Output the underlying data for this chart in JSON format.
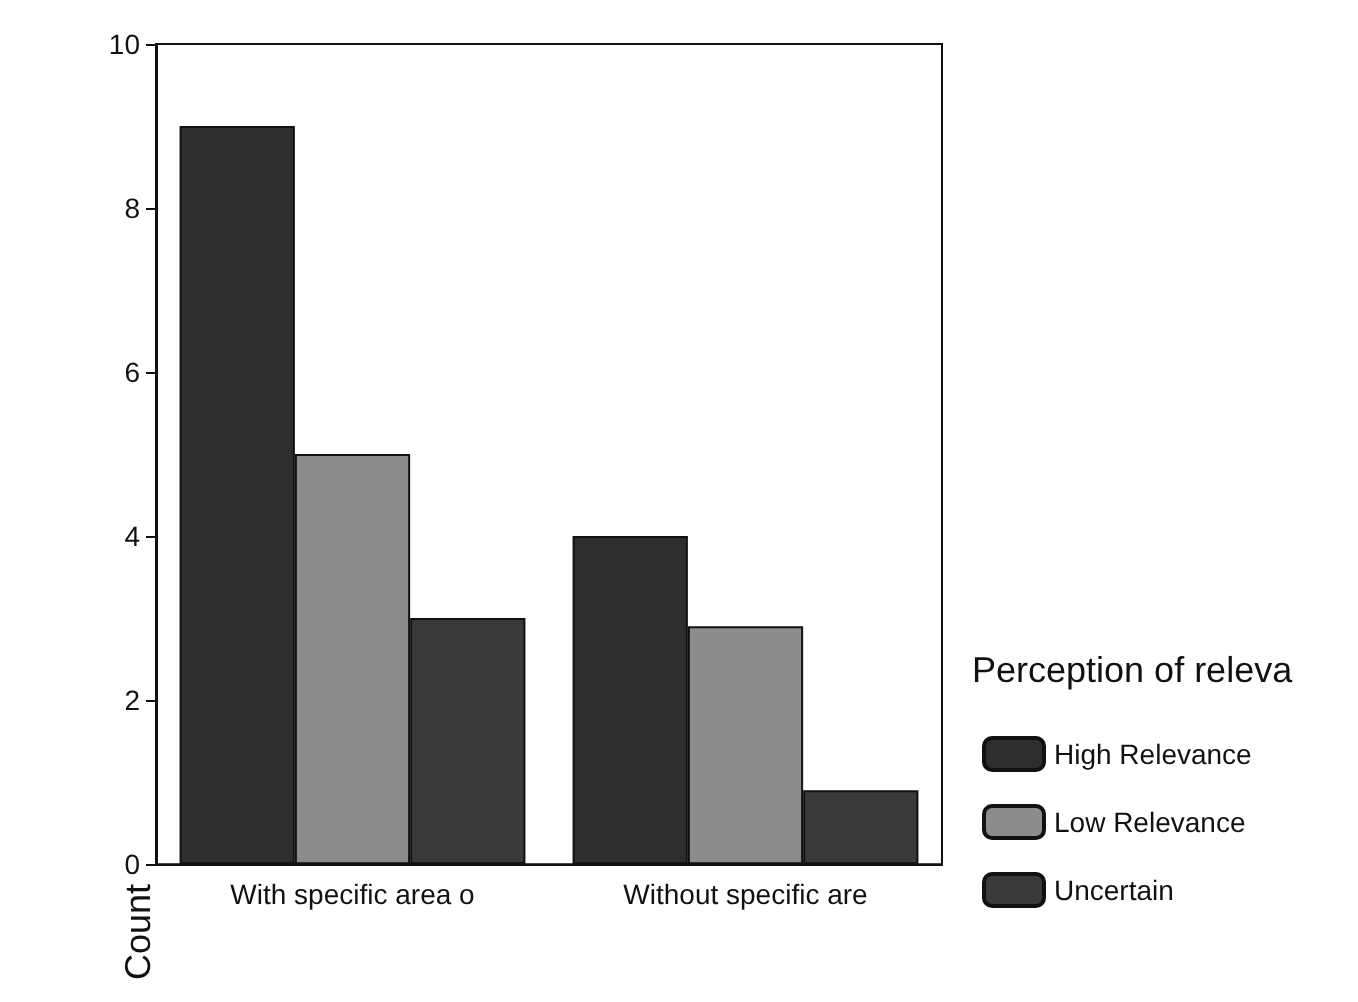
{
  "chart_data": {
    "type": "bar",
    "ylabel": "Count",
    "legend_title": "Perception of releva",
    "categories": [
      "With specific area o",
      "Without specific are"
    ],
    "series": [
      {
        "name": "High Relevance",
        "color": "#2e2e2e",
        "values": [
          9,
          4
        ]
      },
      {
        "name": "Low Relevance",
        "color": "#8c8c8c",
        "values": [
          5,
          2.9
        ]
      },
      {
        "name": "Uncertain",
        "color": "#3a3a3a",
        "values": [
          3,
          0.9
        ]
      }
    ],
    "ylim": [
      0,
      10
    ],
    "yticks": [
      0,
      2,
      4,
      6,
      8,
      10
    ],
    "grid": false,
    "legend": "right"
  }
}
